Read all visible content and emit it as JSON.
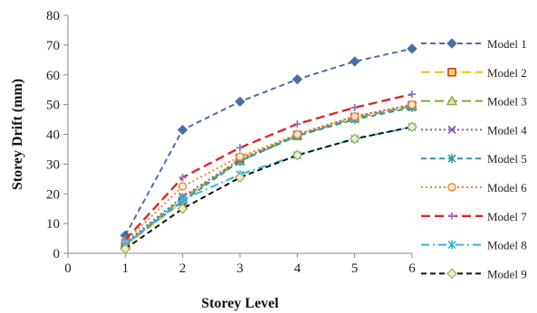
{
  "chart_data": {
    "type": "line",
    "xlabel": "Storey Level",
    "ylabel": "Storey Drift (mm)",
    "xlim": [
      0,
      6
    ],
    "ylim": [
      0,
      80
    ],
    "x_ticks": [
      "0",
      "1",
      "2",
      "3",
      "4",
      "5",
      "6"
    ],
    "y_ticks": [
      "0",
      "10",
      "20",
      "30",
      "40",
      "50",
      "60",
      "70",
      "80"
    ],
    "grid": false,
    "legend_position": "right",
    "x": [
      1,
      2,
      3,
      4,
      5,
      6
    ],
    "series": [
      {
        "name": "Model 1",
        "values": [
          6,
          41.5,
          51,
          58.5,
          64.5,
          68.8
        ],
        "color": "#4a6fa5",
        "marker": "diamond",
        "dash": "dash",
        "width": 2
      },
      {
        "name": "Model 2",
        "values": [
          2.5,
          17.5,
          32,
          39.5,
          45.5,
          49.5
        ],
        "color": "#f2c40d",
        "marker": "square",
        "dash": "longdash",
        "width": 2
      },
      {
        "name": "Model 3",
        "values": [
          3,
          18.5,
          31,
          39.5,
          45.5,
          49.5
        ],
        "color": "#8aa43f",
        "marker": "triangle",
        "dash": "longdash",
        "width": 2
      },
      {
        "name": "Model 4",
        "values": [
          3.5,
          19,
          31.5,
          40,
          46,
          50
        ],
        "color": "#7e5ea6",
        "marker": "x",
        "dash": "dot",
        "width": 2
      },
      {
        "name": "Model 5",
        "values": [
          3,
          17.5,
          31,
          39.5,
          45,
          49
        ],
        "color": "#2e96b0",
        "marker": "star",
        "dash": "dash",
        "width": 2
      },
      {
        "name": "Model 6",
        "values": [
          4,
          22.5,
          32.5,
          40,
          46,
          50
        ],
        "color": "#e38b3a",
        "marker": "circle",
        "dash": "dot",
        "width": 2
      },
      {
        "name": "Model 7",
        "values": [
          4.5,
          25.5,
          35.5,
          43.5,
          49,
          53.5
        ],
        "color": "#e0262b",
        "marker": "plus",
        "dash": "longdash",
        "width": 2.4
      },
      {
        "name": "Model 8",
        "values": [
          3,
          18,
          26.5,
          33,
          38.5,
          42.5
        ],
        "color": "#2fb5e6",
        "marker": "star",
        "dash": "dashdot",
        "width": 2
      },
      {
        "name": "Model 9",
        "values": [
          1.5,
          15,
          25.5,
          33,
          38.5,
          42.5
        ],
        "color": "#111111",
        "marker": "diamond-open",
        "dash": "dash",
        "width": 2
      }
    ]
  }
}
